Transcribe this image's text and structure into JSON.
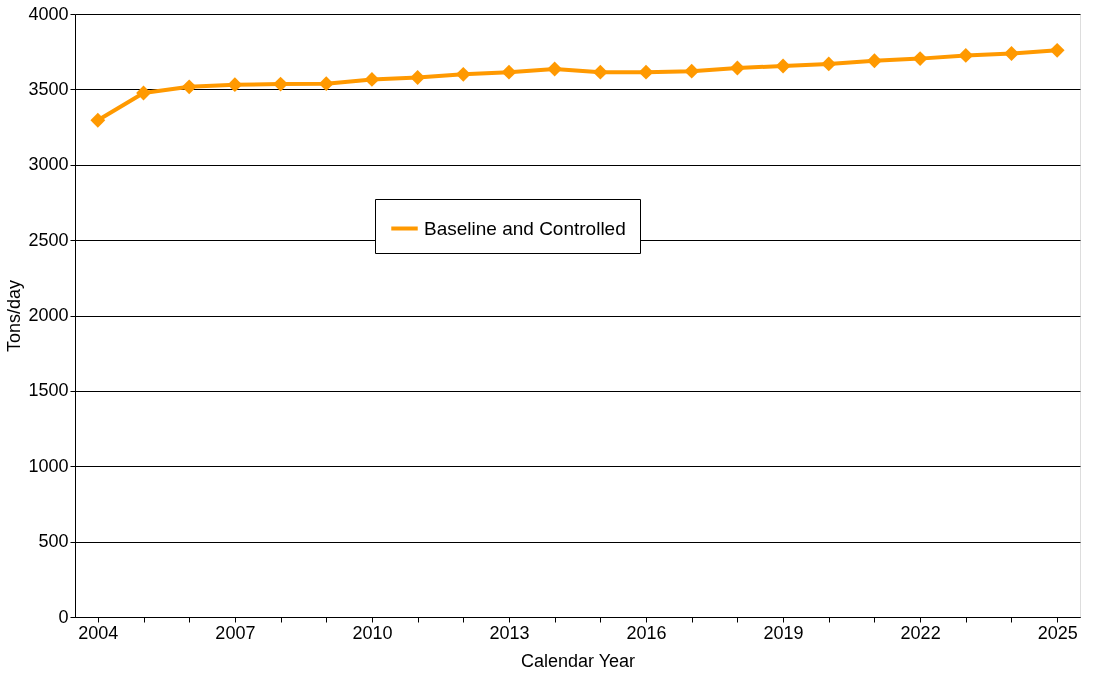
{
  "chart_data": {
    "type": "line",
    "categories": [
      "2004",
      null,
      null,
      "2007",
      null,
      null,
      "2010",
      null,
      null,
      "2013",
      null,
      null,
      "2016",
      null,
      null,
      "2019",
      null,
      null,
      "2022",
      null,
      null,
      "2025"
    ],
    "series": [
      {
        "name": "Baseline and Controlled",
        "color": "#ff9900",
        "values": [
          3295,
          3476,
          3517,
          3531,
          3535,
          3538,
          3566,
          3579,
          3600,
          3614,
          3635,
          3614,
          3614,
          3621,
          3642,
          3655,
          3669,
          3690,
          3704,
          3725,
          3738,
          3759
        ]
      }
    ],
    "xlabel": "Calendar Year",
    "ylabel": "Tons/day",
    "ylim": [
      0,
      4000
    ],
    "yticks": [
      0,
      500,
      1000,
      1500,
      2000,
      2500,
      3000,
      3500,
      4000
    ],
    "grid": "y",
    "legend": "top",
    "marker": "diamond",
    "line_style": "solid"
  }
}
